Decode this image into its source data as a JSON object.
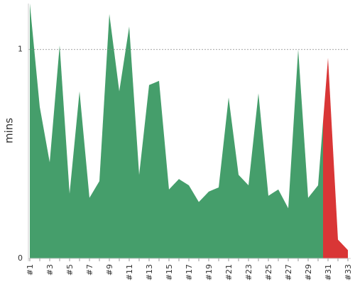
{
  "chart_data": {
    "type": "area",
    "y_label": "mins",
    "categories": [
      "#1",
      null,
      "#3",
      null,
      "#5",
      null,
      "#7",
      null,
      "#9",
      null,
      "#11",
      null,
      "#13",
      null,
      "#15",
      null,
      "#17",
      null,
      "#19",
      null,
      "#21",
      null,
      "#23",
      null,
      "#25",
      null,
      "#27",
      null,
      "#29",
      null,
      "#31",
      null,
      "#33"
    ],
    "values": [
      1.22,
      0.725,
      0.46,
      1.02,
      0.31,
      0.8,
      0.29,
      0.37,
      1.17,
      0.8,
      1.11,
      0.4,
      0.83,
      0.85,
      0.33,
      0.38,
      0.35,
      0.27,
      0.32,
      0.34,
      0.77,
      0.4,
      0.35,
      0.79,
      0.3,
      0.33,
      0.24,
      1.0,
      0.29,
      0.35,
      0.96,
      0.09,
      0.04
    ],
    "colors": [
      "#459e6b",
      "#459e6b",
      "#459e6b",
      "#459e6b",
      "#459e6b",
      "#459e6b",
      "#459e6b",
      "#459e6b",
      "#459e6b",
      "#459e6b",
      "#459e6b",
      "#459e6b",
      "#459e6b",
      "#459e6b",
      "#459e6b",
      "#459e6b",
      "#459e6b",
      "#459e6b",
      "#459e6b",
      "#459e6b",
      "#459e6b",
      "#459e6b",
      "#459e6b",
      "#459e6b",
      "#459e6b",
      "#459e6b",
      "#459e6b",
      "#459e6b",
      "#459e6b",
      "#459e6b",
      "#d93636",
      "#d93636",
      "#d93636"
    ],
    "ylim": [
      0,
      1.22
    ],
    "yticks": [
      0,
      1
    ],
    "grid": "dashed"
  }
}
